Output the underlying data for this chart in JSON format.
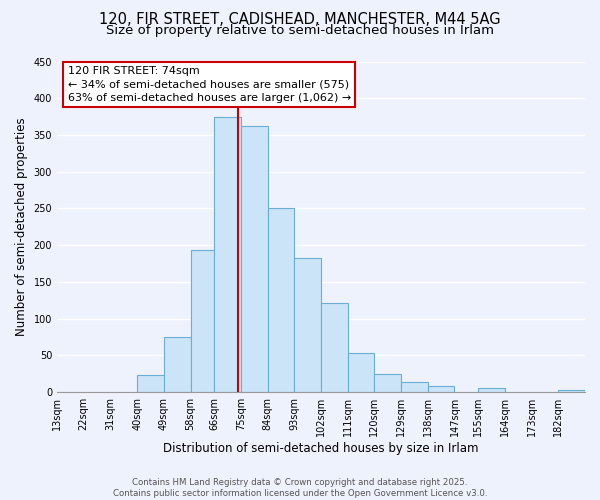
{
  "title_line1": "120, FIR STREET, CADISHEAD, MANCHESTER, M44 5AG",
  "title_line2": "Size of property relative to semi-detached houses in Irlam",
  "xlabel": "Distribution of semi-detached houses by size in Irlam",
  "ylabel": "Number of semi-detached properties",
  "bins": [
    13,
    22,
    31,
    40,
    49,
    58,
    66,
    75,
    84,
    93,
    102,
    111,
    120,
    129,
    138,
    147,
    155,
    164,
    173,
    182,
    191
  ],
  "counts": [
    0,
    0,
    0,
    23,
    75,
    193,
    375,
    362,
    250,
    183,
    122,
    53,
    25,
    14,
    9,
    0,
    6,
    0,
    0,
    3
  ],
  "bar_face_color": "#cce4f7",
  "bar_edge_color": "#6aaed6",
  "property_value": 74,
  "vline_color": "#cc0000",
  "annotation_line1": "120 FIR STREET: 74sqm",
  "annotation_line2": "← 34% of semi-detached houses are smaller (575)",
  "annotation_line3": "63% of semi-detached houses are larger (1,062) →",
  "ylim": [
    0,
    450
  ],
  "yticks": [
    0,
    50,
    100,
    150,
    200,
    250,
    300,
    350,
    400,
    450
  ],
  "bg_color": "#eef2fc",
  "grid_color": "#ffffff",
  "footer_line1": "Contains HM Land Registry data © Crown copyright and database right 2025.",
  "footer_line2": "Contains public sector information licensed under the Open Government Licence v3.0.",
  "title_fontsize": 10.5,
  "subtitle_fontsize": 9.5,
  "tick_label_fontsize": 7,
  "axis_label_fontsize": 8.5,
  "annotation_fontsize": 8,
  "footer_fontsize": 6.2
}
